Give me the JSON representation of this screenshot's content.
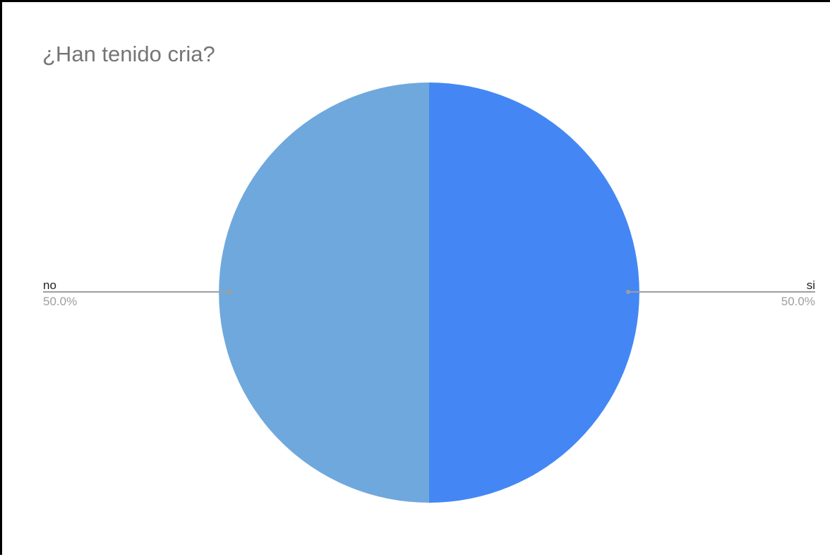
{
  "chart_data": {
    "type": "pie",
    "title": "¿Han tenido cria?",
    "slices": [
      {
        "label": "si",
        "value": 50.0,
        "percent_label": "50.0%",
        "color": "#4487f4"
      },
      {
        "label": "no",
        "value": 50.0,
        "percent_label": "50.0%",
        "color": "#6fa8dc"
      }
    ],
    "legend": "none",
    "label_style": "outside-leader-lines"
  }
}
